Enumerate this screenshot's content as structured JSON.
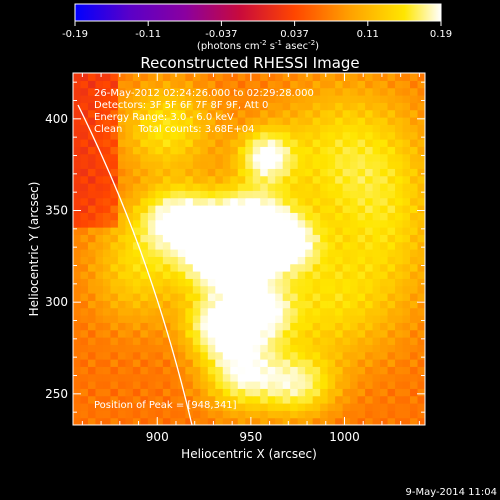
{
  "chart_data": {
    "type": "heatmap",
    "title": "Reconstructed RHESSI Image",
    "xlabel": "Heliocentric X (arcsec)",
    "ylabel": "Heliocentric Y (arcsec)",
    "xlim": [
      855,
      1043
    ],
    "ylim": [
      233,
      425
    ],
    "x_ticks": [
      900,
      950,
      1000
    ],
    "y_ticks": [
      250,
      300,
      350,
      400
    ],
    "colorbar": {
      "range": [
        -0.19,
        0.19
      ],
      "ticks": [
        "-0.19",
        "-0.11",
        "-0.037",
        "0.037",
        "0.11",
        "0.19"
      ],
      "label_prefix": "(photons cm",
      "label_sup1": "-2",
      "label_mid": " s",
      "label_sup2": "-1",
      "label_suffix": " asec",
      "label_sup3": "-2",
      "label_end": ")",
      "colormap": [
        "#0000ff",
        "#5a00c8",
        "#8a00a0",
        "#c80a3c",
        "#ff4600",
        "#ffa000",
        "#ffe600",
        "#ffffff"
      ]
    },
    "annotations": {
      "time_range": "26-May-2012 02:24:26.000 to 02:29:28.000",
      "detectors": "Detectors: 3F 5F 6F 7F 8F 9F, Att 0",
      "energy": "Energy Range: 3.0 - 6.0 keV",
      "method": "Clean     Total counts: 3.68E+04",
      "peak": "Position of Peak = [948,341]"
    },
    "peak": [
      948,
      341
    ],
    "sources": [
      {
        "x": 948,
        "y": 341,
        "amp": 0.19,
        "sx": 16,
        "sy": 14
      },
      {
        "x": 912,
        "y": 345,
        "amp": 0.14,
        "sx": 14,
        "sy": 12
      },
      {
        "x": 935,
        "y": 322,
        "amp": 0.15,
        "sx": 15,
        "sy": 12
      },
      {
        "x": 958,
        "y": 380,
        "amp": 0.12,
        "sx": 10,
        "sy": 10
      },
      {
        "x": 968,
        "y": 332,
        "amp": 0.11,
        "sx": 12,
        "sy": 10
      },
      {
        "x": 932,
        "y": 288,
        "amp": 0.13,
        "sx": 12,
        "sy": 12
      },
      {
        "x": 955,
        "y": 295,
        "amp": 0.12,
        "sx": 12,
        "sy": 12
      },
      {
        "x": 945,
        "y": 262,
        "amp": 0.12,
        "sx": 14,
        "sy": 14
      },
      {
        "x": 975,
        "y": 255,
        "amp": 0.1,
        "sx": 14,
        "sy": 12
      },
      {
        "x": 1000,
        "y": 380,
        "amp": 0.08,
        "sx": 28,
        "sy": 28
      },
      {
        "x": 990,
        "y": 300,
        "amp": 0.07,
        "sx": 25,
        "sy": 25
      },
      {
        "x": 905,
        "y": 395,
        "amp": 0.08,
        "sx": 18,
        "sy": 18
      },
      {
        "x": 890,
        "y": 320,
        "amp": 0.07,
        "sx": 18,
        "sy": 22
      },
      {
        "x": 1025,
        "y": 340,
        "amp": 0.05,
        "sx": 20,
        "sy": 30
      }
    ],
    "background": 0.055
  },
  "footer": {
    "date": "9-May-2014 11:04"
  }
}
